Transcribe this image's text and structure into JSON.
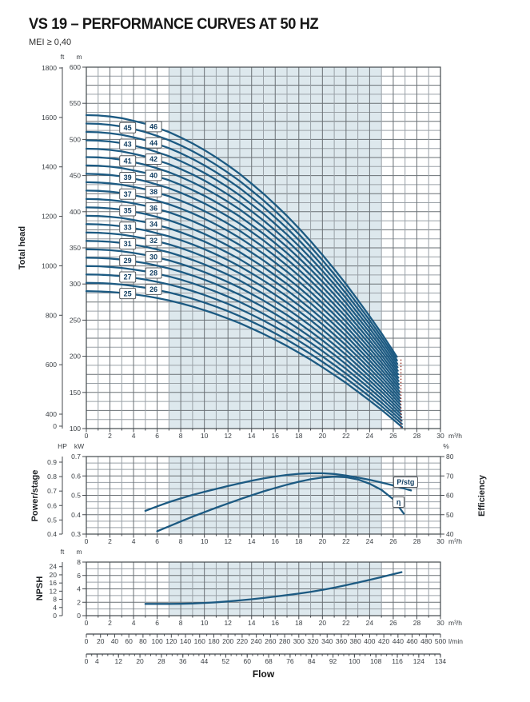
{
  "header": {
    "title": "VS 19 – PERFORMANCE CURVES AT 50 HZ",
    "subtitle": "MEI ≥ 0,40"
  },
  "colors": {
    "background": "#ffffff",
    "curve": "#1c5a82",
    "band": "#dde8ed",
    "grid_minor": "#9aa1a7",
    "grid_major": "#6a7075",
    "grid_border": "#44494e",
    "tick_text": "#3a3f44",
    "axis_title_text": "#1f2225",
    "stage_label_text": "#123f63",
    "stage_label_border": "#54595e",
    "max_flow_line": "#9c382c"
  },
  "flow_axis": {
    "xlim": [
      0,
      30
    ],
    "tick_labels": [
      0,
      2,
      4,
      6,
      8,
      10,
      12,
      14,
      16,
      18,
      20,
      22,
      24,
      26,
      28,
      30
    ],
    "minor_step": 1,
    "unit": "m³/h"
  },
  "chart_data": [
    {
      "id": "total-head-curves",
      "type": "line",
      "title": "Total head stage curves (stages 25–46)",
      "ylabel": "Total head",
      "xlabel": "Flow",
      "x_unit": "m³/h",
      "xlim": [
        0,
        30
      ],
      "y_unit": "m",
      "ylim": [
        100,
        600
      ],
      "y_tick_labels_m": [
        600,
        550,
        500,
        450,
        400,
        350,
        300,
        250,
        200,
        150,
        100
      ],
      "y_minor_step_m": 12.5,
      "y_major_step_m": 25,
      "y_secondary_unit": "ft",
      "y_tick_labels_ft": [
        1800,
        1600,
        1400,
        1200,
        1000,
        800,
        600,
        400,
        0
      ],
      "band_flow_range": [
        7,
        25
      ],
      "stage_min": 25,
      "stage_max": 46,
      "head_per_stage_m": {
        "flow_m3h": [
          0,
          1,
          2,
          3,
          4,
          5,
          6,
          7,
          8,
          9,
          10,
          11,
          12,
          13,
          14,
          15,
          16,
          17,
          18,
          19,
          20,
          21,
          22,
          23,
          24,
          25,
          26,
          27
        ],
        "head_m": [
          11.6,
          11.59,
          11.56,
          11.51,
          11.43,
          11.34,
          11.22,
          11.09,
          10.93,
          10.75,
          10.55,
          10.33,
          10.09,
          9.83,
          9.54,
          9.24,
          8.91,
          8.57,
          8.2,
          7.81,
          7.4,
          6.97,
          6.52,
          6.04,
          5.55,
          5.04,
          4.5,
          3.94
        ]
      },
      "end_flow_m3h": {
        "at_stage_min": 26.75,
        "at_stage_max": 26.3
      },
      "stage_label_flow": {
        "odd": 3.5,
        "even": 5.7
      },
      "max_flow_limit_line": {
        "flow_m3h": 26.65,
        "head_m_from": 101,
        "head_m_to": 197
      }
    },
    {
      "id": "power-efficiency",
      "type": "line",
      "ylabel_left": "Power/stage",
      "ylabel_right": "Efficiency",
      "xlim": [
        0,
        30
      ],
      "x_unit": "m³/h",
      "y_left_unit": "kW",
      "y_left_lim": [
        0.3,
        0.7
      ],
      "y_left_ticks": [
        0.7,
        0.6,
        0.5,
        0.4,
        0.3
      ],
      "y_left_minor_divisions_per_major": 3,
      "y_left2_unit": "HP",
      "y_left2_ticks": [
        0.9,
        0.8,
        0.7,
        0.6,
        0.5,
        0.4
      ],
      "y_right_unit": "%",
      "y_right_lim": [
        40,
        80
      ],
      "y_right_ticks": [
        80,
        70,
        60,
        50,
        40
      ],
      "band_flow_range": [
        7,
        25
      ],
      "series": [
        {
          "name": "P/stg",
          "axis": "kW",
          "x": [
            5,
            6,
            7,
            8,
            9,
            10,
            11,
            12,
            13,
            14,
            15,
            16,
            17,
            18,
            19,
            20,
            21,
            22,
            23,
            24,
            25,
            26,
            27,
            27.5
          ],
          "y": [
            0.42,
            0.443,
            0.465,
            0.484,
            0.502,
            0.518,
            0.533,
            0.548,
            0.562,
            0.575,
            0.587,
            0.597,
            0.605,
            0.611,
            0.614,
            0.614,
            0.61,
            0.602,
            0.592,
            0.58,
            0.566,
            0.551,
            0.534,
            0.525
          ],
          "label_box": {
            "flow": 27.05,
            "kw": 0.568
          }
        },
        {
          "name": "η",
          "axis": "%",
          "x": [
            6,
            7,
            8,
            9,
            10,
            11,
            12,
            13,
            14,
            15,
            16,
            17,
            18,
            19,
            20,
            21,
            22,
            23,
            24,
            25,
            26,
            26.9
          ],
          "y": [
            41.5,
            44,
            46.5,
            49,
            51.3,
            53.6,
            55.8,
            58,
            60,
            62,
            63.8,
            65.5,
            67,
            68.3,
            69.2,
            69.6,
            69.3,
            68.2,
            66,
            62.8,
            58,
            50.5
          ],
          "label_box": {
            "flow": 26.45,
            "kw": 0.465
          }
        }
      ]
    },
    {
      "id": "npsh",
      "type": "line",
      "ylabel": "NPSH",
      "xlim": [
        0,
        30
      ],
      "x_unit": "m³/h",
      "y_unit": "m",
      "ylim": [
        0,
        8
      ],
      "y_tick_labels_m": [
        8,
        6,
        4,
        2,
        0
      ],
      "y_minor_step_m": 1,
      "y_secondary_unit": "ft",
      "y_tick_labels_ft": [
        24,
        20,
        16,
        12,
        8,
        4,
        0
      ],
      "band_flow_range": [
        7,
        25
      ],
      "series": [
        {
          "name": "NPSH",
          "x": [
            5,
            6,
            7,
            8,
            9,
            10,
            11,
            12,
            13,
            14,
            15,
            16,
            17,
            18,
            19,
            20,
            21,
            22,
            23,
            24,
            25,
            26,
            26.7
          ],
          "y": [
            1.75,
            1.75,
            1.75,
            1.77,
            1.82,
            1.9,
            2.0,
            2.12,
            2.28,
            2.45,
            2.64,
            2.85,
            3.07,
            3.3,
            3.56,
            3.85,
            4.18,
            4.55,
            4.94,
            5.35,
            5.75,
            6.2,
            6.5
          ]
        }
      ]
    },
    {
      "id": "flow-scales",
      "type": "table",
      "xlabel": "Flow",
      "lmin": {
        "unit": "l/min",
        "tick_labels": [
          0,
          20,
          40,
          60,
          80,
          100,
          120,
          140,
          160,
          180,
          200,
          220,
          240,
          260,
          280,
          300,
          320,
          340,
          360,
          380,
          400,
          420,
          440,
          460,
          480,
          500
        ],
        "minor_step": 10
      },
      "gpm": {
        "tick_labels": [
          0,
          4,
          12,
          20,
          28,
          36,
          44,
          52,
          60,
          68,
          76,
          84,
          92,
          100,
          108,
          116,
          124,
          134
        ],
        "minor_step": 2
      }
    }
  ]
}
